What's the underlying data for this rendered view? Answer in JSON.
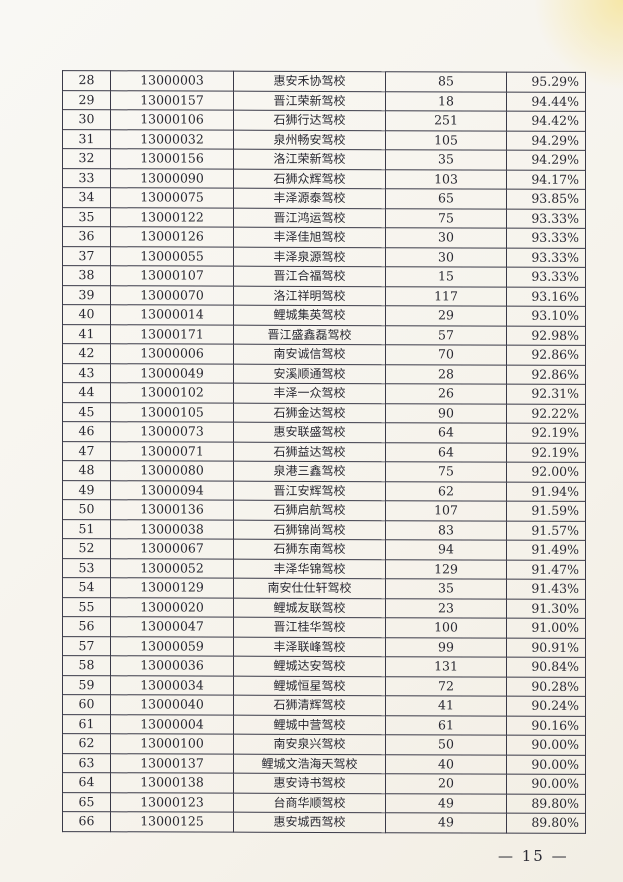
{
  "table": {
    "rows": [
      [
        "28",
        "13000003",
        "惠安禾协驾校",
        "85",
        "95.29%"
      ],
      [
        "29",
        "13000157",
        "晋江荣新驾校",
        "18",
        "94.44%"
      ],
      [
        "30",
        "13000106",
        "石狮行达驾校",
        "251",
        "94.42%"
      ],
      [
        "31",
        "13000032",
        "泉州畅安驾校",
        "105",
        "94.29%"
      ],
      [
        "32",
        "13000156",
        "洛江荣新驾校",
        "35",
        "94.29%"
      ],
      [
        "33",
        "13000090",
        "石狮众辉驾校",
        "103",
        "94.17%"
      ],
      [
        "34",
        "13000075",
        "丰泽源泰驾校",
        "65",
        "93.85%"
      ],
      [
        "35",
        "13000122",
        "晋江鸿运驾校",
        "75",
        "93.33%"
      ],
      [
        "36",
        "13000126",
        "丰泽佳旭驾校",
        "30",
        "93.33%"
      ],
      [
        "37",
        "13000055",
        "丰泽泉源驾校",
        "30",
        "93.33%"
      ],
      [
        "38",
        "13000107",
        "晋江合福驾校",
        "15",
        "93.33%"
      ],
      [
        "39",
        "13000070",
        "洛江祥明驾校",
        "117",
        "93.16%"
      ],
      [
        "40",
        "13000014",
        "鲤城集英驾校",
        "29",
        "93.10%"
      ],
      [
        "41",
        "13000171",
        "晋江盛鑫磊驾校",
        "57",
        "92.98%"
      ],
      [
        "42",
        "13000006",
        "南安诚信驾校",
        "70",
        "92.86%"
      ],
      [
        "43",
        "13000049",
        "安溪顺通驾校",
        "28",
        "92.86%"
      ],
      [
        "44",
        "13000102",
        "丰泽一众驾校",
        "26",
        "92.31%"
      ],
      [
        "45",
        "13000105",
        "石狮金达驾校",
        "90",
        "92.22%"
      ],
      [
        "46",
        "13000073",
        "惠安联盛驾校",
        "64",
        "92.19%"
      ],
      [
        "47",
        "13000071",
        "石狮益达驾校",
        "64",
        "92.19%"
      ],
      [
        "48",
        "13000080",
        "泉港三鑫驾校",
        "75",
        "92.00%"
      ],
      [
        "49",
        "13000094",
        "晋江安辉驾校",
        "62",
        "91.94%"
      ],
      [
        "50",
        "13000136",
        "石狮启航驾校",
        "107",
        "91.59%"
      ],
      [
        "51",
        "13000038",
        "石狮锦尚驾校",
        "83",
        "91.57%"
      ],
      [
        "52",
        "13000067",
        "石狮东南驾校",
        "94",
        "91.49%"
      ],
      [
        "53",
        "13000052",
        "丰泽华锦驾校",
        "129",
        "91.47%"
      ],
      [
        "54",
        "13000129",
        "南安仕仕轩驾校",
        "35",
        "91.43%"
      ],
      [
        "55",
        "13000020",
        "鲤城友联驾校",
        "23",
        "91.30%"
      ],
      [
        "56",
        "13000047",
        "晋江桂华驾校",
        "100",
        "91.00%"
      ],
      [
        "57",
        "13000059",
        "丰泽联峰驾校",
        "99",
        "90.91%"
      ],
      [
        "58",
        "13000036",
        "鲤城达安驾校",
        "131",
        "90.84%"
      ],
      [
        "59",
        "13000034",
        "鲤城恒星驾校",
        "72",
        "90.28%"
      ],
      [
        "60",
        "13000040",
        "石狮清辉驾校",
        "41",
        "90.24%"
      ],
      [
        "61",
        "13000004",
        "鲤城中营驾校",
        "61",
        "90.16%"
      ],
      [
        "62",
        "13000100",
        "南安泉兴驾校",
        "50",
        "90.00%"
      ],
      [
        "63",
        "13000137",
        "鲤城文浩海天驾校",
        "40",
        "90.00%"
      ],
      [
        "64",
        "13000138",
        "惠安诗书驾校",
        "20",
        "90.00%"
      ],
      [
        "65",
        "13000123",
        "台商华顺驾校",
        "49",
        "89.80%"
      ],
      [
        "66",
        "13000125",
        "惠安城西驾校",
        "49",
        "89.80%"
      ]
    ]
  },
  "footer": {
    "page_number": "— 15 —"
  }
}
